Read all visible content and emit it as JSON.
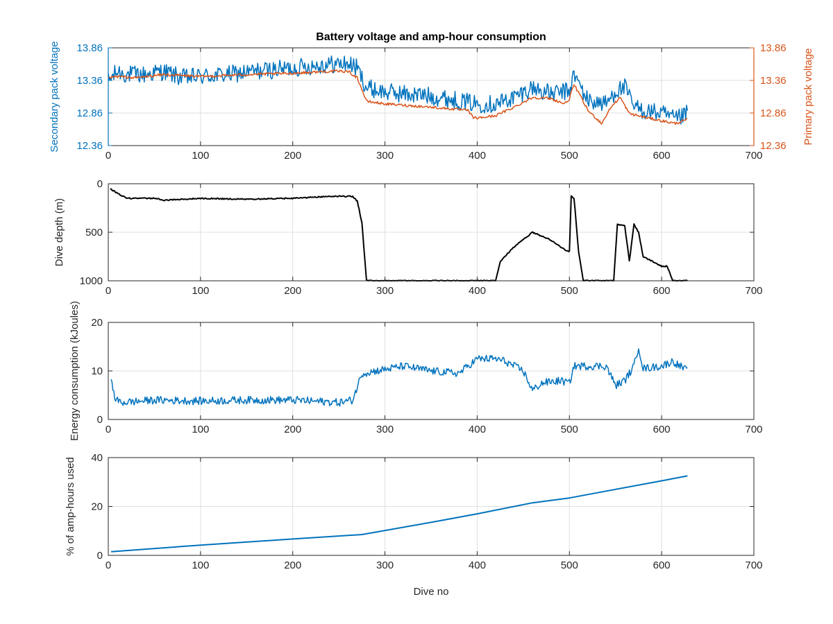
{
  "figure": {
    "title": "Battery voltage and amp-hour consumption",
    "xlabel": "Dive no"
  },
  "colors": {
    "blue": "#0072BD",
    "orange": "#D95319",
    "black": "#000000",
    "axis": "#262626",
    "grid": "#dfdfdf"
  },
  "chart_data": [
    {
      "type": "line",
      "title": "Battery voltage and amp-hour consumption",
      "xlabel": "",
      "ylabel": "Secondary pack voltage",
      "ylabel_right": "Primary pack voltage",
      "xlim": [
        0,
        700
      ],
      "ylim": [
        12.36,
        13.86
      ],
      "ylim_right": [
        12.36,
        13.86
      ],
      "xticks": [
        0,
        100,
        200,
        300,
        400,
        500,
        600,
        700
      ],
      "yticks": [
        12.36,
        12.86,
        13.36,
        13.86
      ],
      "yticks_right": [
        12.36,
        12.86,
        13.36,
        13.86
      ],
      "grid": true,
      "series": [
        {
          "axis": "left",
          "color": "#0072BD",
          "noise": 0.14,
          "x": [
            0,
            10,
            20,
            40,
            60,
            80,
            100,
            130,
            160,
            200,
            230,
            260,
            270,
            280,
            300,
            350,
            400,
            420,
            440,
            460,
            480,
            500,
            505,
            520,
            540,
            550,
            560,
            570,
            580,
            600,
            615,
            628
          ],
          "y": [
            13.35,
            13.5,
            13.45,
            13.45,
            13.5,
            13.4,
            13.42,
            13.45,
            13.5,
            13.55,
            13.6,
            13.62,
            13.55,
            13.25,
            13.18,
            13.12,
            13.0,
            13.0,
            13.1,
            13.25,
            13.15,
            13.2,
            13.45,
            13.05,
            13.0,
            13.2,
            13.25,
            12.95,
            12.9,
            12.85,
            12.75,
            12.85
          ]
        },
        {
          "axis": "right",
          "color": "#D95319",
          "noise": 0.02,
          "x": [
            0,
            10,
            30,
            60,
            100,
            150,
            200,
            240,
            260,
            270,
            280,
            300,
            350,
            390,
            395,
            400,
            420,
            440,
            460,
            480,
            495,
            500,
            505,
            520,
            535,
            545,
            555,
            565,
            580,
            600,
            615,
            628
          ],
          "y": [
            13.4,
            13.42,
            13.4,
            13.45,
            13.42,
            13.45,
            13.47,
            13.5,
            13.5,
            13.4,
            13.04,
            13.0,
            12.95,
            12.9,
            12.8,
            12.78,
            12.82,
            12.95,
            13.1,
            13.08,
            13.0,
            13.08,
            13.3,
            12.9,
            12.7,
            12.95,
            13.1,
            12.85,
            12.8,
            12.74,
            12.7,
            12.76
          ]
        }
      ]
    },
    {
      "type": "line",
      "title": "",
      "xlabel": "",
      "ylabel": "Dive depth (m)",
      "xlim": [
        0,
        700
      ],
      "ylim": [
        0,
        1000
      ],
      "y_reversed": true,
      "xticks": [
        0,
        100,
        200,
        300,
        400,
        500,
        600,
        700
      ],
      "yticks": [
        0,
        500,
        1000
      ],
      "grid": true,
      "series": [
        {
          "axis": "left",
          "color": "#000000",
          "noise": 6,
          "x": [
            2,
            10,
            20,
            50,
            60,
            100,
            150,
            200,
            240,
            265,
            270,
            275,
            280,
            300,
            350,
            400,
            420,
            425,
            440,
            460,
            480,
            495,
            500,
            502,
            505,
            510,
            515,
            540,
            548,
            552,
            560,
            565,
            570,
            575,
            580,
            600,
            606,
            612,
            628
          ],
          "y": [
            50,
            100,
            150,
            150,
            170,
            150,
            160,
            150,
            130,
            130,
            180,
            400,
            1000,
            1000,
            1000,
            1000,
            1000,
            800,
            650,
            500,
            580,
            680,
            700,
            120,
            150,
            700,
            1000,
            1000,
            1000,
            420,
            430,
            800,
            420,
            500,
            750,
            850,
            850,
            1000,
            1000
          ]
        }
      ]
    },
    {
      "type": "line",
      "title": "",
      "xlabel": "",
      "ylabel": "Energy consumption (kJoules)",
      "xlim": [
        0,
        700
      ],
      "ylim": [
        0,
        20
      ],
      "xticks": [
        0,
        100,
        200,
        300,
        400,
        500,
        600,
        700
      ],
      "yticks": [
        0,
        10,
        20
      ],
      "grid": true,
      "series": [
        {
          "axis": "left",
          "color": "#0072BD",
          "noise": 0.8,
          "x": [
            3,
            8,
            15,
            50,
            100,
            150,
            200,
            250,
            265,
            275,
            290,
            320,
            350,
            380,
            400,
            420,
            430,
            450,
            460,
            470,
            490,
            500,
            505,
            520,
            540,
            550,
            560,
            570,
            575,
            580,
            600,
            612,
            628
          ],
          "y": [
            8,
            4,
            3.5,
            4,
            3.8,
            4,
            4,
            3.5,
            4,
            9.5,
            10,
            11,
            10,
            9.5,
            12.5,
            12.5,
            12,
            10,
            6,
            7.5,
            8,
            7.5,
            11,
            11,
            11,
            7,
            8,
            11,
            15,
            10.5,
            11,
            12,
            10
          ]
        }
      ]
    },
    {
      "type": "line",
      "title": "",
      "xlabel": "Dive no",
      "ylabel": "% of amp-hours used",
      "xlim": [
        0,
        700
      ],
      "ylim": [
        0,
        40
      ],
      "xticks": [
        0,
        100,
        200,
        300,
        400,
        500,
        600,
        700
      ],
      "yticks": [
        0,
        20,
        40
      ],
      "grid": true,
      "series": [
        {
          "axis": "left",
          "color": "#0072BD",
          "noise": 0,
          "x": [
            3,
            100,
            200,
            275,
            350,
            400,
            460,
            500,
            550,
            600,
            628
          ],
          "y": [
            1.5,
            4.2,
            6.7,
            8.5,
            13.5,
            17,
            21.5,
            23.5,
            27,
            30.5,
            32.5
          ]
        }
      ]
    }
  ]
}
